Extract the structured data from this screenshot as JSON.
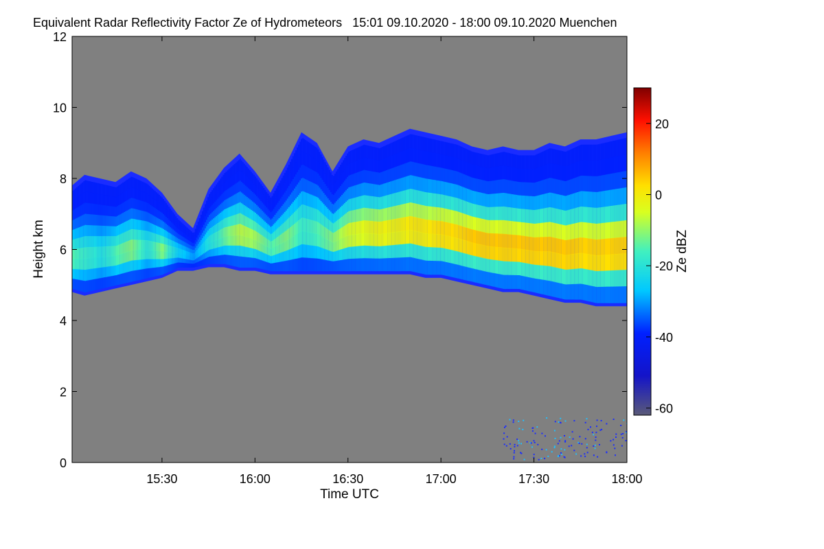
{
  "chart_data": {
    "type": "heatmap",
    "title": "Equivalent Radar Reflectivity Factor Ze of Hydrometeors   15:01 09.10.2020 - 18:00 09.10.2020 Muenchen",
    "xlabel": "Time UTC",
    "ylabel": "Height km",
    "x_range_minutes_utc": [
      901,
      1080
    ],
    "x_ticks": [
      {
        "minute": 930,
        "label": "15:30"
      },
      {
        "minute": 960,
        "label": "16:00"
      },
      {
        "minute": 990,
        "label": "16:30"
      },
      {
        "minute": 1020,
        "label": "17:00"
      },
      {
        "minute": 1050,
        "label": "17:30"
      },
      {
        "minute": 1080,
        "label": "18:00"
      }
    ],
    "ylim": [
      0,
      12
    ],
    "y_ticks": [
      0,
      2,
      4,
      6,
      8,
      10,
      12
    ],
    "colorbar": {
      "label": "Ze dBZ",
      "range": [
        -62,
        30
      ],
      "ticks": [
        20,
        0,
        -20,
        -40,
        -60
      ],
      "colormap": "jet",
      "no_signal_color": "#808080"
    },
    "cloud_profile_km": {
      "minutes": [
        901,
        905,
        910,
        915,
        920,
        925,
        930,
        935,
        940,
        945,
        950,
        955,
        960,
        965,
        970,
        975,
        980,
        985,
        990,
        995,
        1000,
        1005,
        1010,
        1015,
        1020,
        1025,
        1030,
        1035,
        1040,
        1045,
        1050,
        1055,
        1060,
        1065,
        1070,
        1075,
        1080
      ],
      "base": [
        4.8,
        4.7,
        4.8,
        4.9,
        5.0,
        5.1,
        5.2,
        5.4,
        5.4,
        5.5,
        5.5,
        5.4,
        5.4,
        5.3,
        5.3,
        5.3,
        5.3,
        5.3,
        5.3,
        5.3,
        5.3,
        5.3,
        5.3,
        5.2,
        5.2,
        5.1,
        5.0,
        4.9,
        4.8,
        4.8,
        4.7,
        4.6,
        4.5,
        4.5,
        4.4,
        4.4,
        4.4
      ],
      "top": [
        7.8,
        8.1,
        8.0,
        7.9,
        8.2,
        8.0,
        7.6,
        7.0,
        6.6,
        7.7,
        8.3,
        8.7,
        8.2,
        7.6,
        8.4,
        9.3,
        9.0,
        8.2,
        8.9,
        9.1,
        9.0,
        9.2,
        9.4,
        9.3,
        9.2,
        9.1,
        8.9,
        8.8,
        8.9,
        8.8,
        8.8,
        9.0,
        8.9,
        9.1,
        9.1,
        9.2,
        9.3
      ],
      "max_dbz": [
        -14,
        -16,
        -20,
        -14,
        -10,
        -18,
        -10,
        -24,
        -30,
        -20,
        -12,
        -6,
        -8,
        -14,
        -10,
        -16,
        -14,
        -10,
        -4,
        -2,
        0,
        0,
        2,
        2,
        4,
        4,
        6,
        6,
        6,
        6,
        6,
        6,
        6,
        5,
        5,
        5,
        5
      ]
    }
  }
}
